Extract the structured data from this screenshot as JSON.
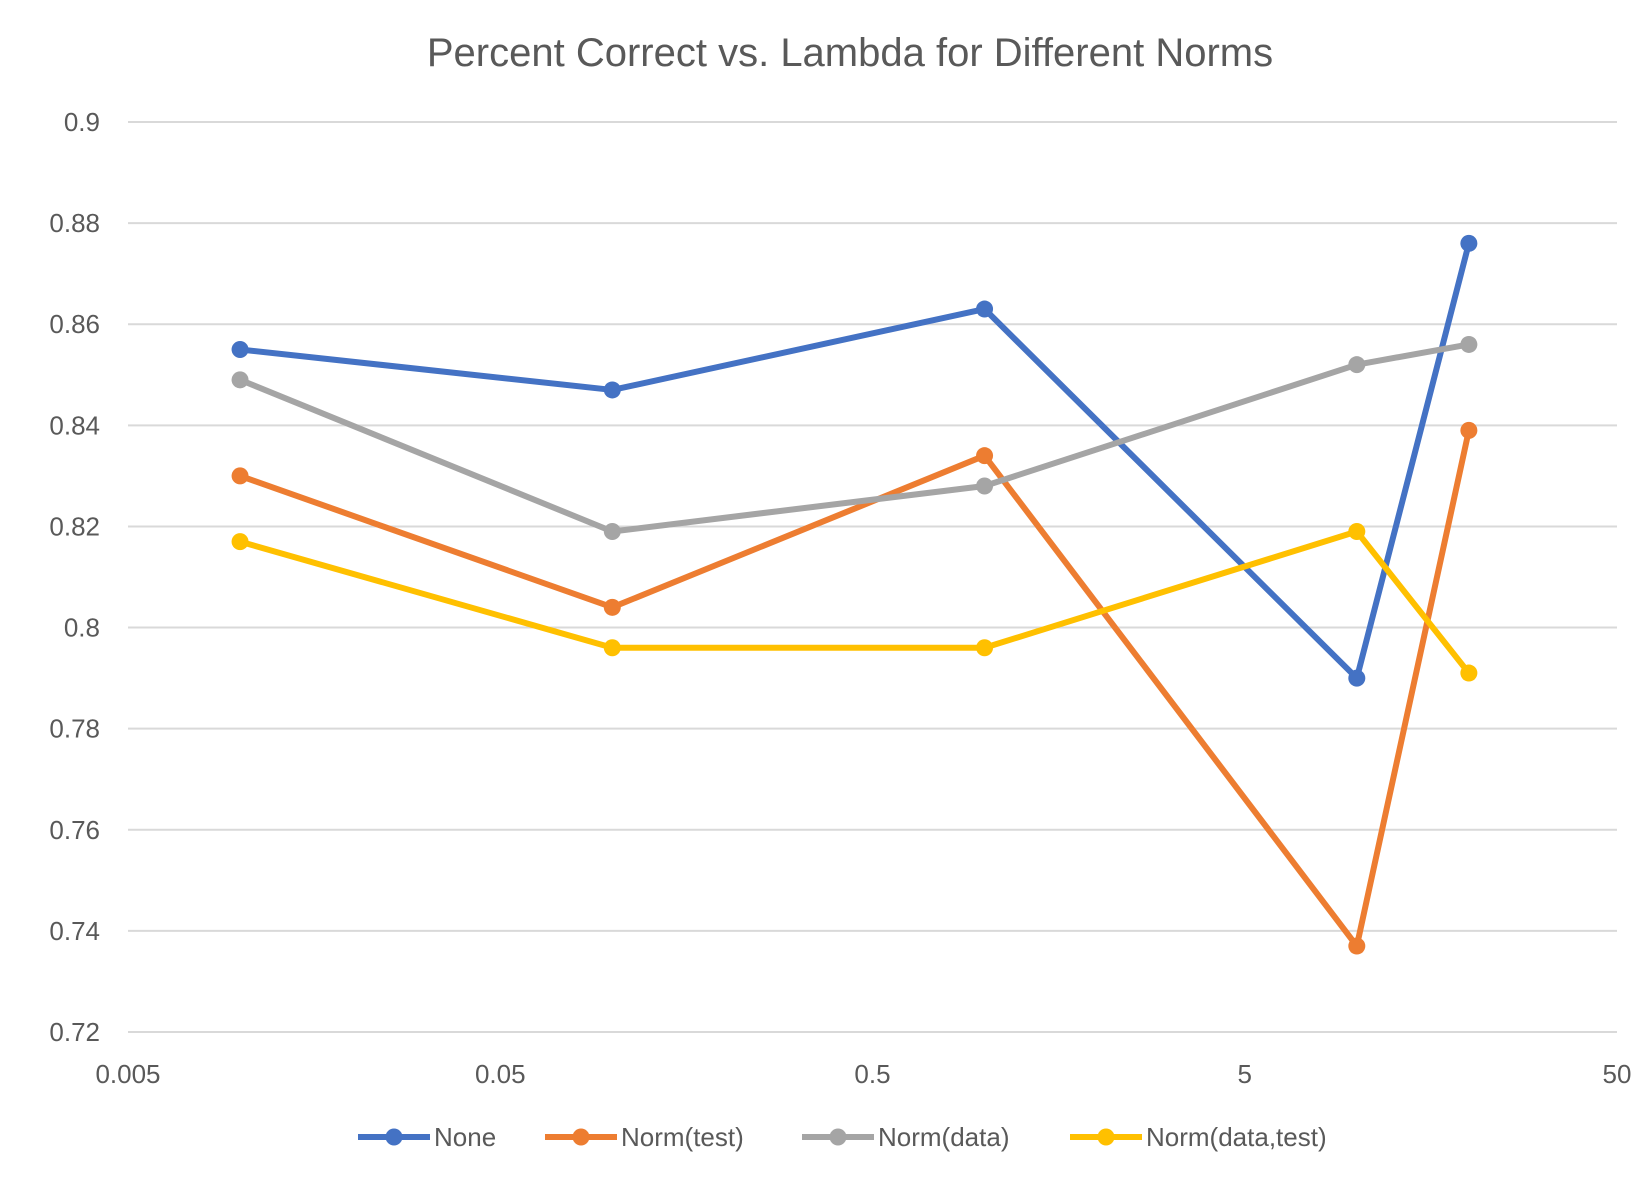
{
  "chart_data": {
    "type": "line",
    "title": "Percent Correct vs. Lambda for Different Norms",
    "xlabel": "",
    "ylabel": "",
    "x_scale": "log",
    "xlim": [
      0.005,
      50
    ],
    "ylim": [
      0.72,
      0.9
    ],
    "x_ticks": [
      "0.005",
      "0.05",
      "0.5",
      "5",
      "50"
    ],
    "y_ticks": [
      "0.9",
      "0.88",
      "0.86",
      "0.84",
      "0.82",
      "0.8",
      "0.78",
      "0.76",
      "0.74",
      "0.72"
    ],
    "grid": true,
    "legend_position": "bottom",
    "x": [
      0.01,
      0.1,
      1,
      10,
      20
    ],
    "series": [
      {
        "name": "None",
        "color": "#4472C4",
        "values": [
          0.855,
          0.847,
          0.863,
          0.79,
          0.876
        ]
      },
      {
        "name": "Norm(test)",
        "color": "#ED7D31",
        "values": [
          0.83,
          0.804,
          0.834,
          0.737,
          0.839
        ]
      },
      {
        "name": "Norm(data)",
        "color": "#A5A5A5",
        "values": [
          0.849,
          0.819,
          0.828,
          0.852,
          0.856
        ]
      },
      {
        "name": "Norm(data,test)",
        "color": "#FFC000",
        "values": [
          0.817,
          0.796,
          0.796,
          0.819,
          0.791
        ]
      }
    ]
  }
}
